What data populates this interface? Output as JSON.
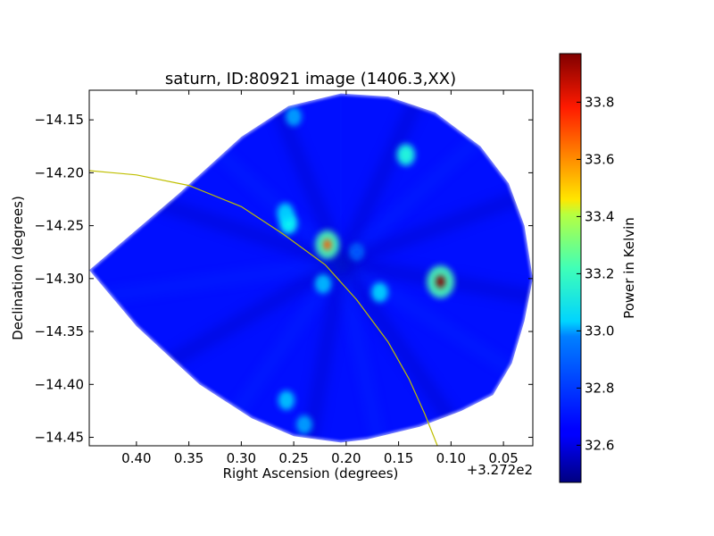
{
  "chart_data": {
    "type": "heatmap",
    "title": "saturn, ID:80921 image (1406.3,XX)",
    "xlabel": "Right Ascension (degrees)",
    "ylabel": "Declination (degrees)",
    "x_offset_label": "+3.272e2",
    "xlim": [
      0.445,
      0.022
    ],
    "ylim": [
      -14.458,
      -14.122
    ],
    "x_ticks": [
      0.4,
      0.35,
      0.3,
      0.25,
      0.2,
      0.15,
      0.1,
      0.05
    ],
    "x_tick_labels": [
      "0.40",
      "0.35",
      "0.30",
      "0.25",
      "0.20",
      "0.15",
      "0.10",
      "0.05"
    ],
    "y_ticks": [
      -14.15,
      -14.2,
      -14.25,
      -14.3,
      -14.35,
      -14.4,
      -14.45
    ],
    "y_tick_labels": [
      "−14.15",
      "−14.20",
      "−14.25",
      "−14.30",
      "−14.35",
      "−14.40",
      "−14.45"
    ],
    "colorbar": {
      "label": "Power in Kelvin",
      "colormap": "jet",
      "range": [
        32.47,
        33.97
      ],
      "ticks": [
        32.6,
        32.8,
        33.0,
        33.2,
        33.4,
        33.6,
        33.8
      ],
      "tick_labels": [
        "32.6",
        "32.8",
        "33.0",
        "33.2",
        "33.4",
        "33.6",
        "33.8"
      ]
    },
    "background_level": 32.68,
    "footprint_polygon": [
      [
        0.445,
        -14.292
      ],
      [
        0.36,
        -14.22
      ],
      [
        0.3,
        -14.166
      ],
      [
        0.255,
        -14.137
      ],
      [
        0.205,
        -14.125
      ],
      [
        0.16,
        -14.128
      ],
      [
        0.115,
        -14.143
      ],
      [
        0.072,
        -14.175
      ],
      [
        0.045,
        -14.21
      ],
      [
        0.03,
        -14.25
      ],
      [
        0.022,
        -14.3
      ],
      [
        0.03,
        -14.34
      ],
      [
        0.042,
        -14.38
      ],
      [
        0.06,
        -14.41
      ],
      [
        0.09,
        -14.425
      ],
      [
        0.13,
        -14.44
      ],
      [
        0.18,
        -14.452
      ],
      [
        0.205,
        -14.455
      ],
      [
        0.25,
        -14.449
      ],
      [
        0.29,
        -14.432
      ],
      [
        0.34,
        -14.4
      ],
      [
        0.4,
        -14.345
      ]
    ],
    "sources": [
      {
        "ra": 0.11,
        "dec": -14.303,
        "value": 33.97
      },
      {
        "ra": 0.218,
        "dec": -14.268,
        "value": 33.65
      },
      {
        "ra": 0.143,
        "dec": -14.183,
        "value": 33.1
      },
      {
        "ra": 0.255,
        "dec": -14.248,
        "value": 33.05
      },
      {
        "ra": 0.258,
        "dec": -14.238,
        "value": 32.95
      },
      {
        "ra": 0.168,
        "dec": -14.313,
        "value": 32.95
      },
      {
        "ra": 0.222,
        "dec": -14.305,
        "value": 32.9
      },
      {
        "ra": 0.257,
        "dec": -14.415,
        "value": 32.92
      },
      {
        "ra": 0.25,
        "dec": -14.147,
        "value": 32.85
      },
      {
        "ra": 0.24,
        "dec": -14.438,
        "value": 32.85
      },
      {
        "ra": 0.19,
        "dec": -14.275,
        "value": 32.7
      }
    ],
    "overlay_arc": {
      "color": "#bfbf00",
      "points": [
        [
          0.445,
          -14.198
        ],
        [
          0.4,
          -14.202
        ],
        [
          0.35,
          -14.212
        ],
        [
          0.3,
          -14.232
        ],
        [
          0.26,
          -14.258
        ],
        [
          0.22,
          -14.287
        ],
        [
          0.19,
          -14.32
        ],
        [
          0.16,
          -14.36
        ],
        [
          0.14,
          -14.395
        ],
        [
          0.125,
          -14.428
        ],
        [
          0.113,
          -14.458
        ]
      ]
    }
  }
}
